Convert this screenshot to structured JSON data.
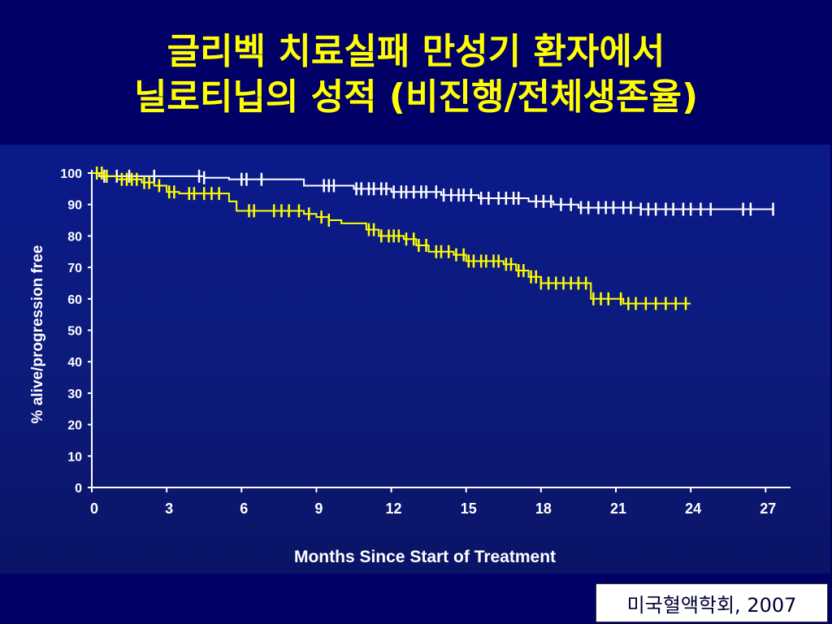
{
  "slide": {
    "title_line1": "글리벡 치료실패 만성기 환자에서",
    "title_line2": "닐로티닙의 성적 (비진행/전체생존율)",
    "source": "미국혈액학회, 2007"
  },
  "chart_data": {
    "type": "line",
    "title": "",
    "xlabel": "Months Since Start of Treatment",
    "ylabel": "% alive/progression free",
    "xlim": [
      0,
      28
    ],
    "ylim": [
      0,
      100
    ],
    "xticks": [
      0,
      3,
      6,
      9,
      12,
      15,
      18,
      21,
      24,
      27
    ],
    "yticks": [
      0,
      10,
      20,
      30,
      40,
      50,
      60,
      70,
      80,
      90,
      100
    ],
    "grid": false,
    "legend": "none",
    "series": [
      {
        "color": "#ffffff",
        "step": true,
        "points": [
          [
            0,
            100
          ],
          [
            0.3,
            99
          ],
          [
            1.2,
            99
          ],
          [
            2,
            99
          ],
          [
            4.5,
            98.5
          ],
          [
            5.5,
            98
          ],
          [
            6.5,
            98
          ],
          [
            8.5,
            96
          ],
          [
            9.5,
            96
          ],
          [
            10.5,
            95
          ],
          [
            12,
            94
          ],
          [
            13,
            94
          ],
          [
            14,
            93
          ],
          [
            15.5,
            92
          ],
          [
            16.5,
            92
          ],
          [
            17.5,
            91
          ],
          [
            18.5,
            90
          ],
          [
            19.5,
            89
          ],
          [
            21,
            89
          ],
          [
            22,
            88.5
          ],
          [
            24,
            88.5
          ],
          [
            26,
            88.5
          ],
          [
            27.3,
            88.5
          ]
        ],
        "censors": [
          0.5,
          1,
          1.5,
          2.5,
          4.3,
          4.5,
          6,
          6.2,
          6.8,
          9.3,
          9.5,
          9.7,
          10.6,
          10.8,
          11.1,
          11.3,
          11.6,
          11.8,
          12.1,
          12.4,
          12.6,
          12.9,
          13.2,
          13.4,
          13.8,
          14.1,
          14.4,
          14.7,
          14.9,
          15.2,
          15.6,
          15.9,
          16.3,
          16.6,
          16.9,
          17.1,
          17.8,
          18.1,
          18.4,
          18.8,
          19.2,
          19.6,
          19.9,
          20.3,
          20.6,
          20.9,
          21.3,
          21.6,
          22,
          22.3,
          22.6,
          23,
          23.3,
          23.7,
          24,
          24.4,
          24.8,
          26.1,
          26.4,
          27.3
        ]
      },
      {
        "color": "#ffff00",
        "step": true,
        "points": [
          [
            0,
            100
          ],
          [
            0.5,
            99
          ],
          [
            1,
            98
          ],
          [
            2,
            97
          ],
          [
            2.5,
            96
          ],
          [
            3,
            94
          ],
          [
            3.5,
            93.5
          ],
          [
            5,
            93.5
          ],
          [
            5.5,
            91
          ],
          [
            5.8,
            88
          ],
          [
            8,
            88
          ],
          [
            8.5,
            87
          ],
          [
            9,
            86
          ],
          [
            9.5,
            85
          ],
          [
            10,
            84
          ],
          [
            11,
            82
          ],
          [
            11.5,
            80
          ],
          [
            12.5,
            79
          ],
          [
            13,
            77
          ],
          [
            13.5,
            75
          ],
          [
            14.5,
            74
          ],
          [
            15,
            72
          ],
          [
            16,
            72
          ],
          [
            16.5,
            71
          ],
          [
            17,
            69
          ],
          [
            17.5,
            67
          ],
          [
            18,
            65
          ],
          [
            19.5,
            65
          ],
          [
            20,
            60
          ],
          [
            21,
            60
          ],
          [
            21.3,
            58.5
          ],
          [
            24,
            58.5
          ]
        ],
        "censors": [
          0.2,
          0.4,
          0.6,
          1.2,
          1.4,
          1.6,
          1.8,
          2.1,
          2.3,
          2.7,
          3.1,
          3.3,
          3.9,
          4.1,
          4.5,
          4.8,
          5.1,
          6.3,
          6.5,
          7.3,
          7.6,
          7.9,
          8.3,
          8.7,
          9.2,
          9.5,
          11.1,
          11.3,
          11.6,
          11.9,
          12.1,
          12.3,
          12.6,
          12.9,
          13.1,
          13.4,
          13.8,
          14,
          14.3,
          14.6,
          14.9,
          15.1,
          15.3,
          15.6,
          15.8,
          16.1,
          16.3,
          16.6,
          16.8,
          17.1,
          17.3,
          17.6,
          17.8,
          18,
          18.3,
          18.6,
          18.9,
          19.2,
          19.5,
          19.8,
          20.1,
          20.4,
          20.7,
          21.2,
          21.5,
          21.8,
          22.2,
          22.6,
          23,
          23.4,
          23.8
        ]
      }
    ]
  }
}
